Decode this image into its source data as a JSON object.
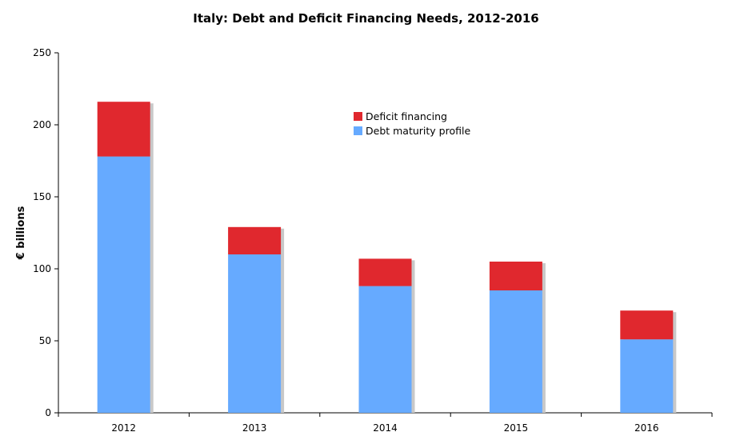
{
  "chart_data": {
    "type": "bar",
    "stacked": true,
    "title": "Italy: Debt and Deficit Financing Needs, 2012-2016",
    "xlabel": "",
    "ylabel": "€ billions",
    "ylim": [
      0,
      250
    ],
    "yticks": [
      0,
      50,
      100,
      150,
      200,
      250
    ],
    "categories": [
      "2012",
      "2013",
      "2014",
      "2015",
      "2016"
    ],
    "series": [
      {
        "name": "Debt maturity profile",
        "values": [
          178,
          110,
          88,
          85,
          51
        ],
        "color": "#66aaff"
      },
      {
        "name": "Deficit financing",
        "values": [
          38,
          19,
          19,
          20,
          20
        ],
        "color": "#e0282e"
      }
    ],
    "legend_position": "top-center",
    "grid": false
  }
}
